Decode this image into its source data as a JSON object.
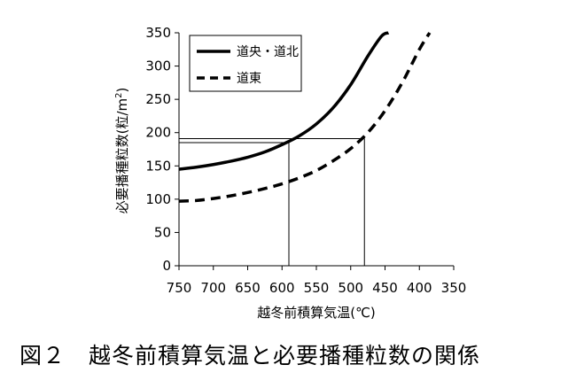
{
  "chart_data": {
    "type": "line",
    "xlabel": "越冬前積算気温(℃)",
    "ylabel_main": "必要播種粒数(粒/m",
    "ylabel_sup": "2",
    "ylabel_end": ")",
    "x_reversed": true,
    "xlim": [
      750,
      350
    ],
    "ylim": [
      0,
      350
    ],
    "xticks": [
      750,
      700,
      650,
      600,
      550,
      500,
      450,
      400,
      350
    ],
    "yticks": [
      0,
      50,
      100,
      150,
      200,
      250,
      300,
      350
    ],
    "grid": false,
    "legend": "top-left",
    "series": [
      {
        "name": "道央・道北",
        "style": "solid",
        "color": "#000000",
        "x": [
          750,
          725,
          700,
          675,
          650,
          625,
          600,
          575,
          550,
          525,
          500,
          475,
          455,
          445
        ],
        "y": [
          145,
          148,
          152,
          157,
          163,
          171,
          182,
          195,
          213,
          238,
          272,
          315,
          345,
          350
        ]
      },
      {
        "name": "道東",
        "style": "dashed",
        "color": "#000000",
        "x": [
          750,
          725,
          700,
          675,
          650,
          625,
          600,
          575,
          550,
          525,
          500,
          475,
          450,
          425,
          400,
          385
        ],
        "y": [
          97,
          98,
          101,
          105,
          110,
          116,
          123,
          132,
          143,
          158,
          176,
          200,
          233,
          275,
          325,
          350
        ]
      }
    ],
    "reference_lines": [
      {
        "x": 590,
        "y": 185
      },
      {
        "x": 480,
        "y": 191
      }
    ]
  },
  "caption": "図２　越冬前積算気温と必要播種粒数の関係"
}
